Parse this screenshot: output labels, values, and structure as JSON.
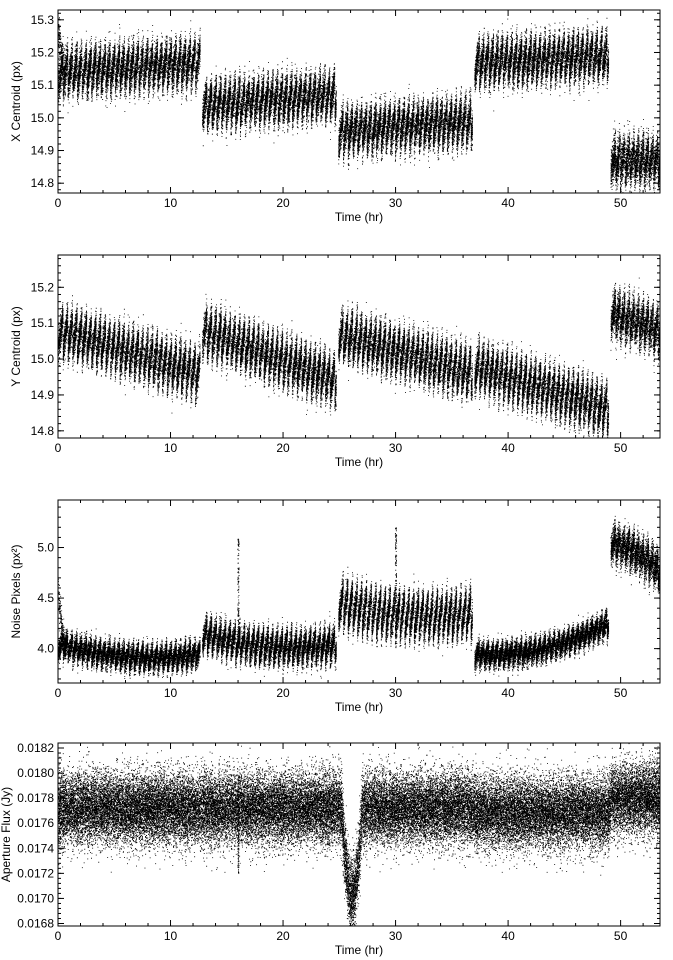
{
  "figure": {
    "x_axis": {
      "label": "Time (hr)",
      "range": [
        0,
        53.5
      ],
      "ticks": [
        0,
        10,
        20,
        30,
        40,
        50
      ],
      "tick_labels": [
        "0",
        "10",
        "20",
        "30",
        "40",
        "50"
      ]
    }
  },
  "chart_data": [
    {
      "type": "scatter",
      "title": "",
      "xlabel": "Time (hr)",
      "ylabel": "X Centroid (px)",
      "xlim": [
        0,
        53.5
      ],
      "ylim": [
        14.77,
        15.33
      ],
      "yticks": [
        14.8,
        14.9,
        15.0,
        15.1,
        15.2,
        15.3
      ],
      "ytick_labels": [
        "14.8",
        "14.9",
        "15.0",
        "15.1",
        "15.2",
        "15.3"
      ],
      "marker_color": "#000000",
      "segments": [
        {
          "x_range": [
            0,
            12.6
          ],
          "y_start": 15.14,
          "y_end": 15.17,
          "oscillation_amplitude": 0.05,
          "scatter": 0.025
        },
        {
          "x_range": [
            12.8,
            24.7
          ],
          "y_start": 15.04,
          "y_end": 15.07,
          "oscillation_amplitude": 0.05,
          "scatter": 0.025
        },
        {
          "x_range": [
            24.9,
            36.8
          ],
          "y_start": 14.96,
          "y_end": 14.99,
          "oscillation_amplitude": 0.05,
          "scatter": 0.025
        },
        {
          "x_range": [
            37.0,
            48.9
          ],
          "y_start": 15.17,
          "y_end": 15.19,
          "oscillation_amplitude": 0.05,
          "scatter": 0.025
        },
        {
          "x_range": [
            49.1,
            53.5
          ],
          "y_start": 14.87,
          "y_end": 14.87,
          "oscillation_amplitude": 0.04,
          "scatter": 0.03
        }
      ],
      "initial_transient": {
        "x_end": 0.6,
        "y_peak": 15.28
      }
    },
    {
      "type": "scatter",
      "title": "",
      "xlabel": "Time (hr)",
      "ylabel": "Y Centroid (px)",
      "xlim": [
        0,
        53.5
      ],
      "ylim": [
        14.78,
        15.29
      ],
      "yticks": [
        14.8,
        14.9,
        15.0,
        15.1,
        15.2
      ],
      "ytick_labels": [
        "14.8",
        "14.9",
        "15.0",
        "15.1",
        "15.2"
      ],
      "marker_color": "#000000",
      "segments": [
        {
          "x_range": [
            0,
            12.6
          ],
          "y_start": 15.08,
          "y_end": 14.96,
          "oscillation_amplitude": 0.05,
          "scatter": 0.022
        },
        {
          "x_range": [
            12.8,
            24.7
          ],
          "y_start": 15.08,
          "y_end": 14.94,
          "oscillation_amplitude": 0.05,
          "scatter": 0.022
        },
        {
          "x_range": [
            24.9,
            36.8
          ],
          "y_start": 15.07,
          "y_end": 14.96,
          "oscillation_amplitude": 0.05,
          "scatter": 0.022
        },
        {
          "x_range": [
            37.0,
            48.9
          ],
          "y_start": 14.98,
          "y_end": 14.86,
          "oscillation_amplitude": 0.05,
          "scatter": 0.022
        },
        {
          "x_range": [
            49.1,
            53.5
          ],
          "y_start": 15.13,
          "y_end": 15.08,
          "oscillation_amplitude": 0.04,
          "scatter": 0.025
        }
      ]
    },
    {
      "type": "scatter",
      "title": "",
      "xlabel": "Time (hr)",
      "ylabel": "Noise Pixels (px²)",
      "xlim": [
        0,
        53.5
      ],
      "ylim": [
        3.66,
        5.47
      ],
      "yticks": [
        4.0,
        4.5,
        5.0
      ],
      "ytick_labels": [
        "4.0",
        "4.5",
        "5.0"
      ],
      "marker_color": "#000000",
      "segments": [
        {
          "x_range": [
            0,
            12.6
          ],
          "y_start": 4.05,
          "y_mid": 3.92,
          "y_end": 3.95,
          "oscillation_amplitude": 0.08,
          "scatter": 0.05
        },
        {
          "x_range": [
            12.8,
            24.7
          ],
          "y_start": 4.15,
          "y_mid": 4.02,
          "y_end": 4.05,
          "oscillation_amplitude": 0.12,
          "scatter": 0.06
        },
        {
          "x_range": [
            24.9,
            36.8
          ],
          "y_start": 4.45,
          "y_mid": 4.33,
          "y_end": 4.35,
          "oscillation_amplitude": 0.18,
          "scatter": 0.07
        },
        {
          "x_range": [
            37.0,
            48.9
          ],
          "y_start": 3.95,
          "y_mid": 4.0,
          "y_end": 4.25,
          "oscillation_amplitude": 0.07,
          "scatter": 0.05
        },
        {
          "x_range": [
            49.1,
            53.5
          ],
          "y_start": 5.05,
          "y_mid": 4.95,
          "y_end": 4.75,
          "oscillation_amplitude": 0.1,
          "scatter": 0.08
        }
      ],
      "spikes": [
        {
          "x": 16.0,
          "y_low": 4.0,
          "y_high": 5.1
        },
        {
          "x": 30.0,
          "y_low": 4.3,
          "y_high": 5.2
        }
      ],
      "initial_transient": {
        "x_end": 0.7,
        "y_peak": 4.6
      }
    },
    {
      "type": "scatter",
      "title": "",
      "xlabel": "Time (hr)",
      "ylabel": "Aperture Flux (Jy)",
      "xlim": [
        0,
        53.5
      ],
      "ylim": [
        0.01678,
        0.01824
      ],
      "yticks": [
        0.0168,
        0.017,
        0.0172,
        0.0174,
        0.0176,
        0.0178,
        0.018,
        0.0182
      ],
      "ytick_labels": [
        "0.0168",
        "0.0170",
        "0.0172",
        "0.0174",
        "0.0176",
        "0.0178",
        "0.0180",
        "0.0182"
      ],
      "marker_color": "#000000",
      "baseline": 0.01772,
      "scatter": 0.00014,
      "segment_offsets": [
        {
          "x_range": [
            0,
            12.6
          ],
          "offset": 0.0
        },
        {
          "x_range": [
            12.8,
            24.7
          ],
          "offset": 0.0
        },
        {
          "x_range": [
            24.9,
            36.8
          ],
          "offset": 0.0
        },
        {
          "x_range": [
            37.0,
            48.9
          ],
          "offset": -3e-05
        },
        {
          "x_range": [
            49.1,
            53.5
          ],
          "offset": 8e-05
        }
      ],
      "eclipse": {
        "x_start": 25.2,
        "x_end": 27.0,
        "y_min": 0.01703
      },
      "spike_x": 16.0
    }
  ]
}
